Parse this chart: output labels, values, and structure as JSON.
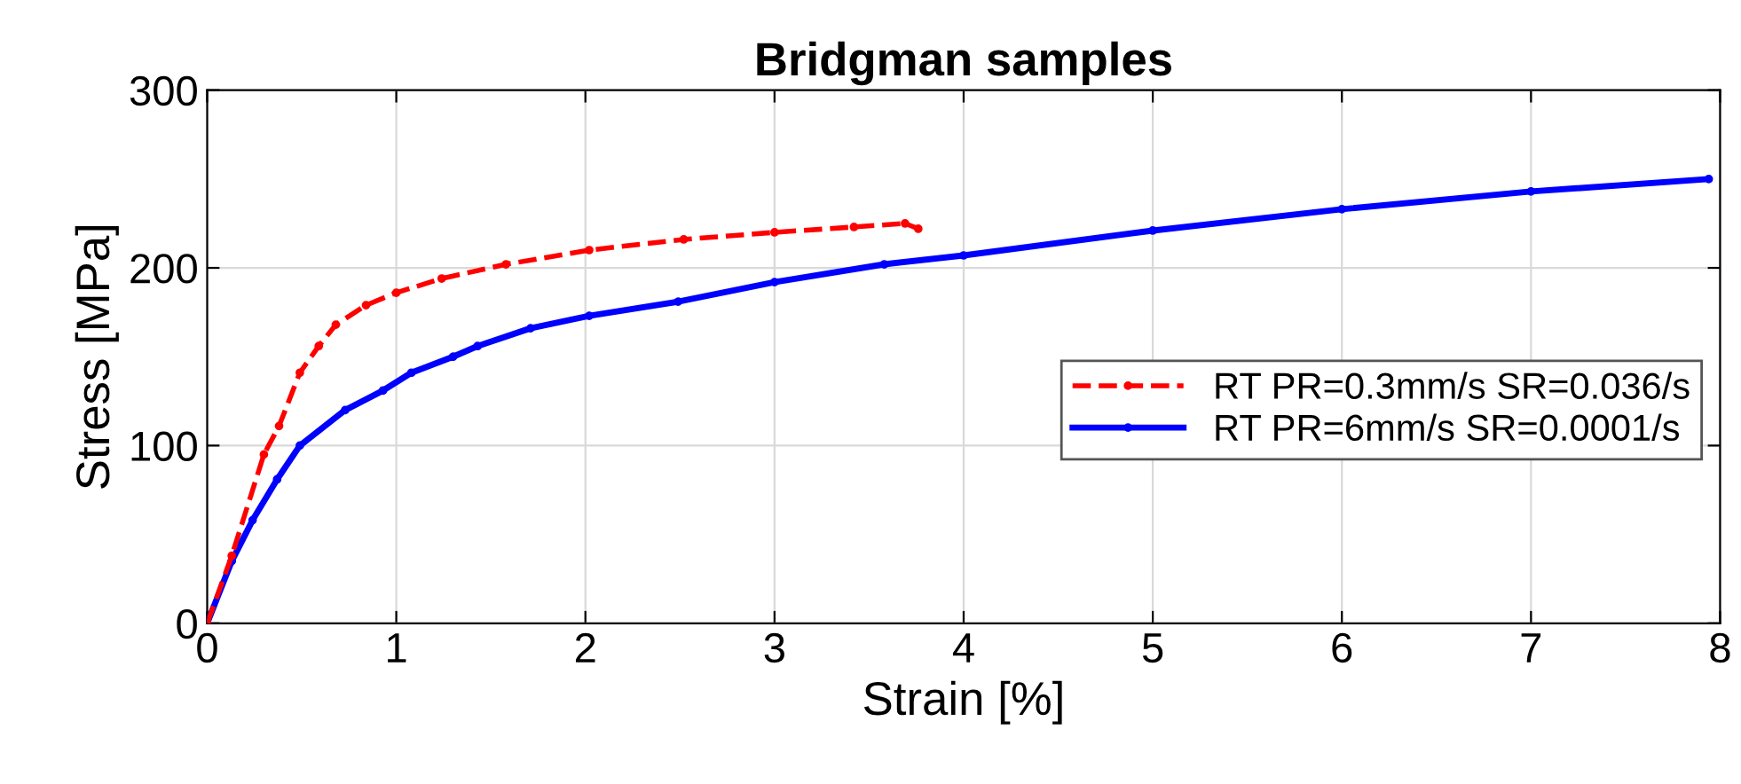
{
  "chart_data": {
    "type": "line",
    "title": "Bridgman samples",
    "xlabel": "Strain [%]",
    "ylabel": "Stress [MPa]",
    "xlim": [
      0,
      8
    ],
    "xticks": [
      0,
      1,
      2,
      3,
      4,
      5,
      6,
      7,
      8
    ],
    "ylim": [
      0,
      300
    ],
    "yticks": [
      0,
      100,
      200,
      300
    ],
    "grid": true,
    "legend": "right",
    "series": [
      {
        "name": "RT PR=0.3mm/s SR=0.036/s",
        "color": "#ff0000",
        "line_style": "dashed",
        "marker": "circle",
        "x": [
          0,
          0.13,
          0.3,
          0.38,
          0.49,
          0.59,
          0.68,
          0.84,
          1.0,
          1.24,
          1.58,
          2.02,
          2.52,
          3.0,
          3.42,
          3.69,
          3.76
        ],
        "values": [
          0,
          38,
          95,
          111,
          141,
          156,
          168,
          179,
          186,
          194,
          202,
          210,
          216,
          220,
          223,
          225,
          222
        ]
      },
      {
        "name": "RT PR=6mm/s SR=0.0001/s",
        "color": "#0000ff",
        "line_style": "solid",
        "marker": "circle",
        "x": [
          0,
          0.13,
          0.24,
          0.37,
          0.49,
          0.73,
          0.93,
          1.08,
          1.3,
          1.43,
          1.71,
          2.02,
          2.49,
          3.0,
          3.58,
          4.0,
          5.0,
          6.0,
          7.0,
          7.94
        ],
        "values": [
          0,
          35,
          58,
          81,
          100,
          120,
          131,
          141,
          150,
          156,
          166,
          173,
          181,
          192,
          202,
          207,
          221,
          233,
          243,
          250
        ]
      }
    ]
  }
}
